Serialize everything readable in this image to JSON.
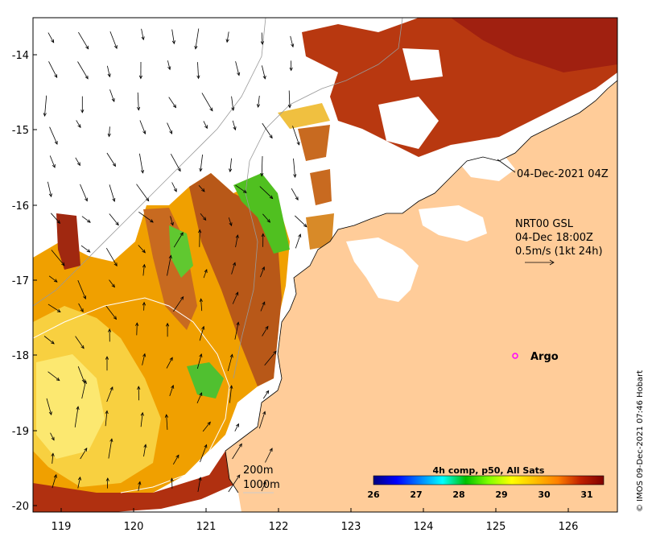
{
  "map": {
    "x_ticks": [
      "119",
      "120",
      "121",
      "122",
      "123",
      "124",
      "125",
      "126"
    ],
    "y_ticks": [
      "-14",
      "-15",
      "-16",
      "-17",
      "-18",
      "-19",
      "-20"
    ],
    "date_label": "04-Dec-2021 04Z",
    "product_lines": [
      "NRT00 GSL",
      "04-Dec 18:00Z",
      "0.5m/s (1kt 24h)"
    ],
    "argo_label": "Argo",
    "depth_labels": [
      "200m",
      "1000m"
    ],
    "credit": "© IMOS 09-Dec-2021 07:46 Hobart"
  },
  "colorbar": {
    "title": "4h comp, p50, All Sats",
    "ticks": [
      "26",
      "27",
      "28",
      "29",
      "30",
      "31"
    ],
    "colors": [
      "#00007f",
      "#0000ff",
      "#0080ff",
      "#00ffff",
      "#00c000",
      "#80ff00",
      "#ffff00",
      "#ffc000",
      "#ff8000",
      "#e04000",
      "#b01800",
      "#800000"
    ]
  },
  "colors": {
    "land": "#ffcc99",
    "argo_marker": "#ff00ff"
  }
}
